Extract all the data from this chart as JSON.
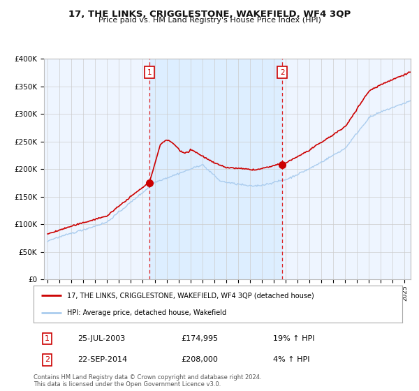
{
  "title": "17, THE LINKS, CRIGGLESTONE, WAKEFIELD, WF4 3QP",
  "subtitle": "Price paid vs. HM Land Registry's House Price Index (HPI)",
  "legend_line1": "17, THE LINKS, CRIGGLESTONE, WAKEFIELD, WF4 3QP (detached house)",
  "legend_line2": "HPI: Average price, detached house, Wakefield",
  "annotation1_label": "1",
  "annotation1_date": "25-JUL-2003",
  "annotation1_price": "£174,995",
  "annotation1_hpi": "19% ↑ HPI",
  "annotation2_label": "2",
  "annotation2_date": "22-SEP-2014",
  "annotation2_price": "£208,000",
  "annotation2_hpi": "4% ↑ HPI",
  "footer": "Contains HM Land Registry data © Crown copyright and database right 2024.\nThis data is licensed under the Open Government Licence v3.0.",
  "sale1_year": 2003.56,
  "sale1_value": 174995,
  "sale2_year": 2014.72,
  "sale2_value": 208000,
  "price_line_color": "#cc0000",
  "hpi_line_color": "#aaccee",
  "shade_color": "#ddeeff",
  "plot_bg_color": "#eef5ff",
  "annotation_box_color": "#cc0000",
  "ylim": [
    0,
    400000
  ],
  "yticks": [
    0,
    50000,
    100000,
    150000,
    200000,
    250000,
    300000,
    350000,
    400000
  ],
  "xstart": 1995,
  "xend": 2025
}
